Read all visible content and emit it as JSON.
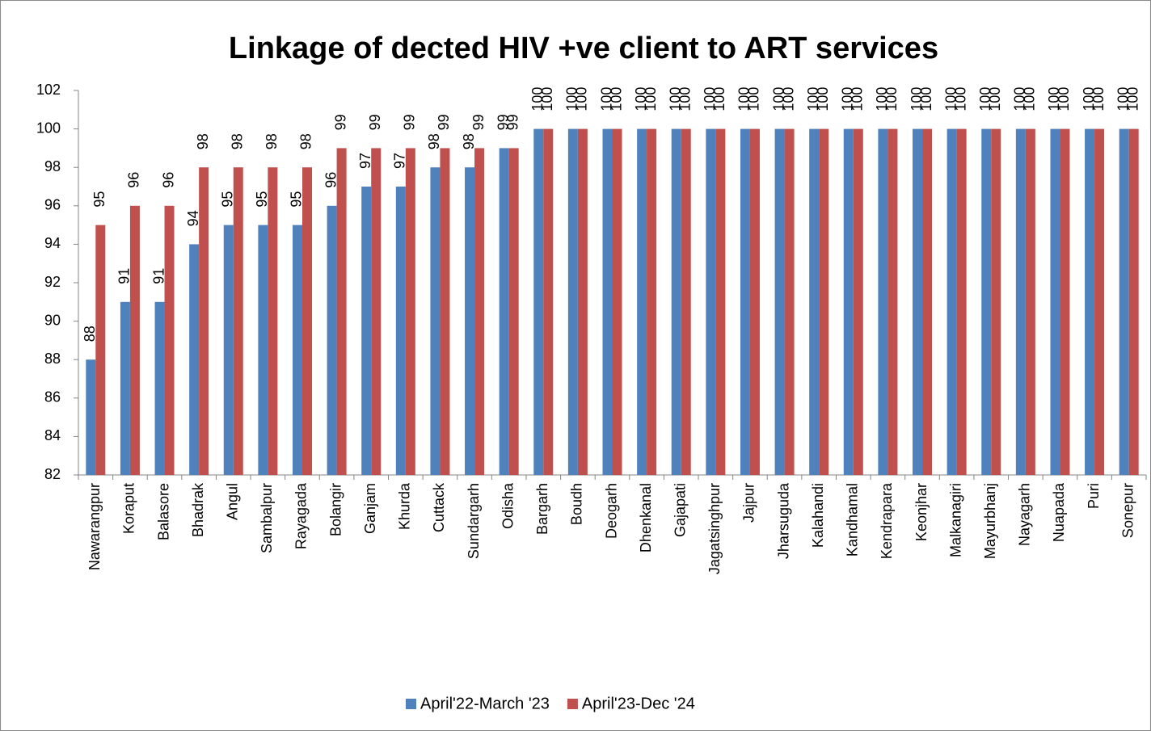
{
  "chart_data": {
    "type": "bar",
    "title": "Linkage of dected HIV +ve client to ART services",
    "categories": [
      "Nawarangpur",
      "Koraput",
      "Balasore",
      "Bhadrak",
      "Angul",
      "Sambalpur",
      "Rayagada",
      "Bolangir",
      "Ganjam",
      "Khurda",
      "Cuttack",
      "Sundargarh",
      "Odisha",
      "Bargarh",
      "Boudh",
      "Deogarh",
      "Dhenkanal",
      "Gajapati",
      "Jagatsinghpur",
      "Jajpur",
      "Jharsuguda",
      "Kalahandi",
      "Kandhamal",
      "Kendrapara",
      "Keonjhar",
      "Malkanagiri",
      "Mayurbhanj",
      "Nayagarh",
      "Nuapada",
      "Puri",
      "Sonepur"
    ],
    "series": [
      {
        "name": "April'22-March '23",
        "color": "#4f81bd",
        "values": [
          88,
          91,
          91,
          94,
          95,
          95,
          95,
          96,
          97,
          97,
          98,
          98,
          99,
          100,
          100,
          100,
          100,
          100,
          100,
          100,
          100,
          100,
          100,
          100,
          100,
          100,
          100,
          100,
          100,
          100,
          100
        ]
      },
      {
        "name": "April'23-Dec '24",
        "color": "#c0504d",
        "values": [
          95,
          96,
          96,
          98,
          98,
          98,
          98,
          99,
          99,
          99,
          99,
          99,
          99,
          100,
          100,
          100,
          100,
          100,
          100,
          100,
          100,
          100,
          100,
          100,
          100,
          100,
          100,
          100,
          100,
          100,
          100
        ]
      }
    ],
    "ylim": [
      82,
      102
    ],
    "yticks": [
      82,
      84,
      86,
      88,
      90,
      92,
      94,
      96,
      98,
      100,
      102
    ],
    "legend": "bottom"
  }
}
